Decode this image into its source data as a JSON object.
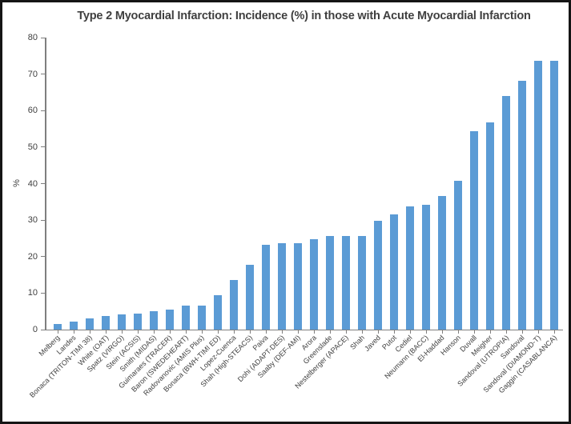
{
  "colors": {
    "bar": "#5B9BD5",
    "axis": "#7F7F7F",
    "tick_text": "#404040",
    "title_text": "#3F3F3F",
    "border": "#151515",
    "background": "#FFFFFF"
  },
  "chart_data": {
    "type": "bar",
    "title": "Type 2 Myocardial Infarction: Incidence (%) in those with Acute Myocardial Infarction",
    "xlabel": "",
    "ylabel": "%",
    "ylim": [
      0,
      80
    ],
    "yticks": [
      0,
      10,
      20,
      30,
      40,
      50,
      60,
      70,
      80
    ],
    "grid": false,
    "legend_position": "none",
    "categories": [
      "Melberg",
      "Landes",
      "Bonaca (TRITON-TIMI 38)",
      "White (OAT)",
      "Spatz (VIRGO)",
      "Stein (ACSIS)",
      "Smith (MIDAS)",
      "Guimaraes (TRACER)",
      "Baron (SWEDEHEART)",
      "Radovanovic (AMIS Plus)",
      "Bonaca (BWH-TIMI ED)",
      "Lopez-Cuenca",
      "Shah (High-STEACS)",
      "Paiva",
      "Dohi (ADAPT-DES)",
      "Saaby (DEF-AMI)",
      "Arora",
      "Greenslade",
      "Nestelberger (APACE)",
      "Shah",
      "Javed",
      "Putot",
      "Cediel",
      "Neumann (BACC)",
      "El-Haddad",
      "Hanson",
      "Duvall",
      "Meigher",
      "Sandoval (UTROPIA)",
      "Sandoval",
      "Sandoval (DIAMOND-T)",
      "Gaggin (CASABLANCA)"
    ],
    "values": [
      1.6,
      2.3,
      3.0,
      3.8,
      4.1,
      4.4,
      5.0,
      5.4,
      6.5,
      6.5,
      9.4,
      13.5,
      17.7,
      23.3,
      23.6,
      23.7,
      24.7,
      25.6,
      25.6,
      25.6,
      29.8,
      31.5,
      33.7,
      34.2,
      36.5,
      40.7,
      54.3,
      56.8,
      64.1,
      68.2,
      73.6,
      73.6
    ]
  }
}
